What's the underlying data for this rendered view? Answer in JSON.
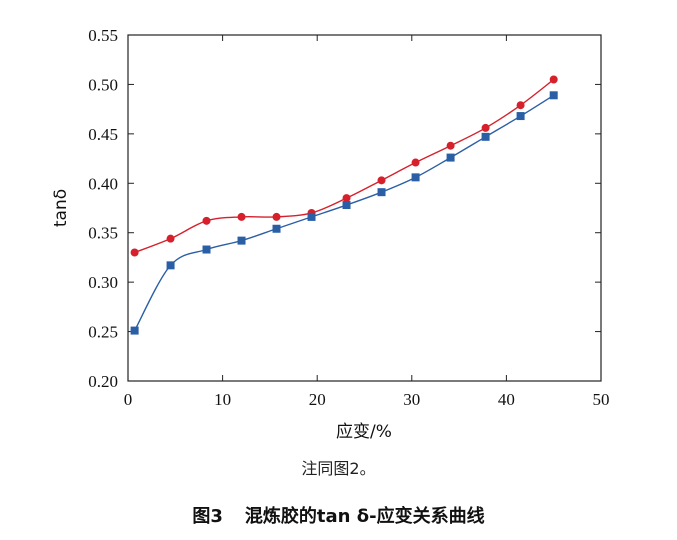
{
  "chart_data": {
    "type": "line",
    "title": "",
    "xlabel": "应变/%",
    "ylabel": "tanδ",
    "xlim": [
      0,
      50
    ],
    "ylim": [
      0.2,
      0.55
    ],
    "xticks": [
      "0",
      "10",
      "20",
      "30",
      "40",
      "50"
    ],
    "yticks": [
      "0.20",
      "0.25",
      "0.30",
      "0.35",
      "0.40",
      "0.45",
      "0.50",
      "0.55"
    ],
    "grid": false,
    "series": [
      {
        "name": "circle-series",
        "marker": "circle",
        "color": "#d6202c",
        "x": [
          0.7,
          4.5,
          8.3,
          12.0,
          15.7,
          19.4,
          23.1,
          26.8,
          30.4,
          34.1,
          37.8,
          41.5,
          45.0
        ],
        "y": [
          0.33,
          0.344,
          0.362,
          0.366,
          0.366,
          0.37,
          0.385,
          0.403,
          0.421,
          0.438,
          0.456,
          0.479,
          0.505
        ]
      },
      {
        "name": "square-series",
        "marker": "square",
        "color": "#2a5fa6",
        "x": [
          0.7,
          4.5,
          8.3,
          12.0,
          15.7,
          19.4,
          23.1,
          26.8,
          30.4,
          34.1,
          37.8,
          41.5,
          45.0
        ],
        "y": [
          0.251,
          0.317,
          0.333,
          0.342,
          0.354,
          0.366,
          0.378,
          0.391,
          0.406,
          0.426,
          0.447,
          0.468,
          0.489
        ]
      }
    ]
  },
  "note": "注同图2。",
  "caption": {
    "number": "图3",
    "title": "混炼胶的tan δ-应变关系曲线"
  }
}
